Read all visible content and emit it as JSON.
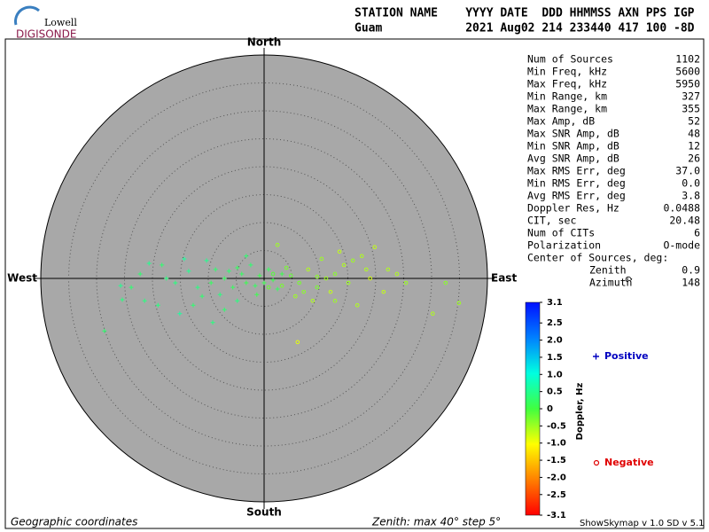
{
  "header": {
    "logo_top": "Lowell",
    "logo_bottom": "DIGISONDE",
    "columns_line": "STATION NAME    YYYY DATE  DDD HHMMSS AXN PPS IGP",
    "values_line": "Guam            2021 Aug02 214 233440 417 100 -8D"
  },
  "stats": [
    {
      "label": "Num of Sources",
      "value": "1102"
    },
    {
      "label": "Min Freq, kHz",
      "value": "5600"
    },
    {
      "label": "Max Freq, kHz",
      "value": "5950"
    },
    {
      "label": "Min Range, km",
      "value": "327"
    },
    {
      "label": "Max Range, km",
      "value": "355"
    },
    {
      "label": "Max Amp, dB",
      "value": "52"
    },
    {
      "label": "Max SNR Amp, dB",
      "value": "48"
    },
    {
      "label": "Min SNR Amp, dB",
      "value": "12"
    },
    {
      "label": "Avg SNR Amp, dB",
      "value": "26"
    },
    {
      "label": "Max RMS Err, deg",
      "value": "37.0"
    },
    {
      "label": "Min RMS Err, deg",
      "value": "0.0"
    },
    {
      "label": "Avg RMS Err, deg",
      "value": "3.8"
    },
    {
      "label": "Doppler Res, Hz",
      "value": "0.0488"
    },
    {
      "label": "CIT, sec",
      "value": "20.48"
    },
    {
      "label": "Num of CITs",
      "value": "6"
    },
    {
      "label": "Polarization",
      "value": "O-mode"
    }
  ],
  "center": {
    "title": "Center of Sources, deg:",
    "rows": [
      {
        "label": "Zenith",
        "value": "0.9"
      },
      {
        "label": "Azimuth",
        "value": "148"
      }
    ]
  },
  "footer": {
    "left": "Geographic coordinates",
    "center": "Zenith: max 40°  step 5°",
    "right": "ShowSkymap v 1.0  SD v 5.1"
  },
  "chart_data": {
    "type": "polar-scatter",
    "directions": {
      "north": "North",
      "south": "South",
      "east": "East",
      "west": "West"
    },
    "rlim": [
      0,
      40
    ],
    "rticks": [
      5,
      10,
      15,
      20,
      25,
      30,
      35
    ],
    "series": [
      {
        "name": "Positive",
        "marker": "+",
        "color": "#0000c0",
        "x": [
          -28.6,
          -25.4,
          -22.2,
          -20.6,
          -18.3,
          -15.9,
          -14.3,
          -12.7,
          -11.9,
          -9.5,
          -8.7,
          -7.9,
          -7.1,
          -6.3,
          -5.6,
          -4.8,
          -4.0,
          -3.2,
          -2.4,
          -1.6,
          -0.8,
          0,
          0.8,
          1.6,
          2.4,
          -10.3,
          -19.0,
          -23.8,
          -15.1,
          -11.1,
          -9.2,
          -3.2,
          -17.5,
          -13.5,
          -4.8,
          -1.3,
          3.2,
          -21.4,
          -7.1,
          -25.7
        ],
        "y": [
          -9.4,
          -3.8,
          0.8,
          2.7,
          2.4,
          -0.8,
          3.5,
          -4.8,
          -1.6,
          -0.8,
          1.6,
          -2.9,
          0,
          1.3,
          -1.6,
          -4.0,
          0.8,
          -0.8,
          2.4,
          -1.3,
          0.5,
          -0.8,
          1.6,
          -0.3,
          -1.9,
          3.2,
          -4.8,
          -1.6,
          -6.3,
          -3.2,
          -7.9,
          4.0,
          0,
          1.3,
          1.9,
          -2.9,
          0.8,
          -4.0,
          -5.6,
          -1.3
        ],
        "doppler": [
          0.3,
          0.4,
          0.3,
          0.5,
          0.3,
          0.4,
          0.6,
          0.3,
          0.4,
          0.2,
          0.3,
          0.4,
          0.2,
          0.3,
          0.2,
          0.4,
          0.2,
          0.1,
          0.3,
          0.2,
          0.1,
          0.1,
          0.2,
          0.1,
          0.2,
          0.5,
          0.4,
          0.3,
          0.6,
          0.3,
          0.4,
          0.3,
          0.4,
          0.5,
          0.2,
          0.1,
          0.1,
          0.4,
          0.3,
          0.5
        ]
      },
      {
        "name": "Negative",
        "marker": "o",
        "color": "#e00000",
        "x": [
          19.8,
          17.5,
          15.9,
          14.3,
          12.7,
          11.1,
          9.5,
          7.9,
          6.3,
          4.8,
          3.2,
          1.6,
          5.6,
          8.7,
          11.9,
          15.1,
          19.0,
          22.2,
          25.4,
          32.5,
          34.9,
          30.2,
          13.5,
          10.3,
          7.1,
          4.0,
          16.7,
          6.0,
          2.4,
          0.8,
          21.4,
          23.8,
          9.5,
          12.7,
          18.3
        ],
        "y": [
          5.6,
          4.0,
          3.2,
          2.4,
          0.8,
          0,
          -1.6,
          1.6,
          -0.8,
          0.5,
          -1.3,
          0.8,
          -3.2,
          -4.0,
          -2.4,
          -0.8,
          0,
          1.6,
          -0.8,
          -0.8,
          -4.4,
          -6.3,
          4.8,
          3.5,
          -2.4,
          1.9,
          -4.8,
          -11.4,
          6.0,
          -1.6,
          -2.4,
          0.8,
          0.3,
          -4.0,
          1.6
        ],
        "doppler": [
          -0.7,
          -0.6,
          -0.5,
          -0.6,
          -0.4,
          -0.5,
          -0.3,
          -0.6,
          -0.3,
          -0.2,
          -0.3,
          -0.1,
          -0.5,
          -0.6,
          -0.7,
          -0.5,
          -0.8,
          -0.6,
          -0.5,
          -0.4,
          -0.5,
          -0.6,
          -0.7,
          -0.5,
          -0.4,
          -0.3,
          -0.6,
          -0.9,
          -0.5,
          -0.2,
          -0.7,
          -0.6,
          -0.4,
          -0.5,
          -0.6
        ]
      }
    ],
    "colorbar": {
      "label": "Doppler, Hz",
      "lim": [
        -3.1,
        3.1
      ],
      "colors": [
        "#ff0000",
        "#ff8000",
        "#ffff00",
        "#40ff40",
        "#00ffe0",
        "#0080ff",
        "#0010ff"
      ],
      "ticks": [
        {
          "value": 3.1,
          "label": "3.1"
        },
        2.5,
        {
          "value": 2,
          "label": "2.0"
        },
        1.5,
        {
          "value": 1,
          "label": "1.0"
        },
        0.5,
        0,
        -0.5,
        {
          "value": -1,
          "label": "-1.0"
        },
        -1.5,
        {
          "value": -2,
          "label": "-2.0"
        },
        -2.5,
        {
          "value": -3.1,
          "label": "-3.1"
        }
      ]
    }
  }
}
